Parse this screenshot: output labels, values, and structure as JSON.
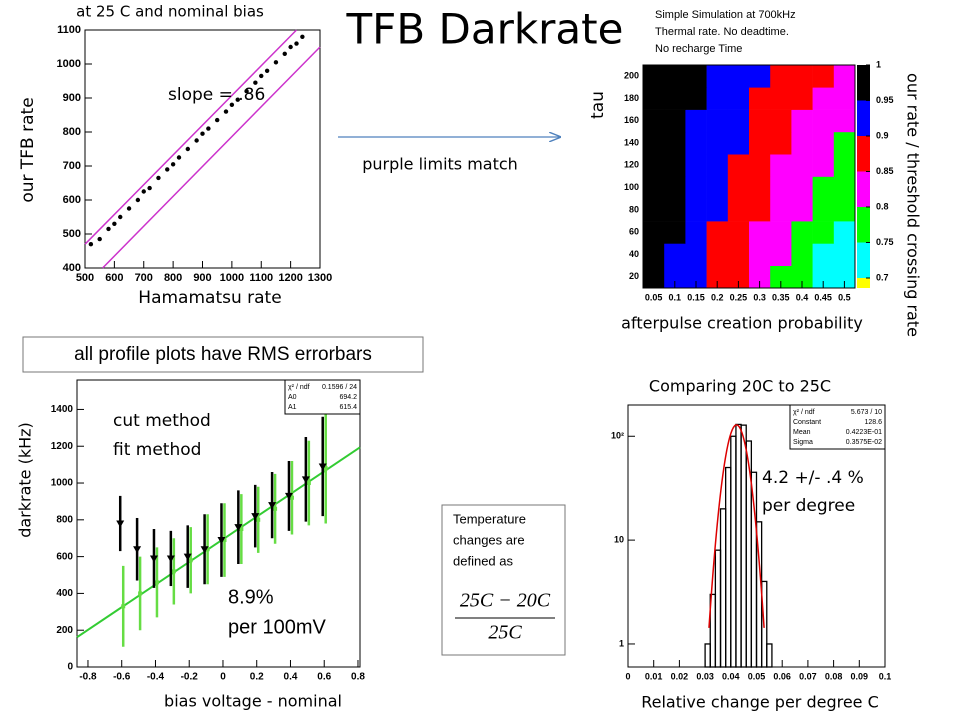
{
  "title": "TFB Darkrate",
  "simulation_note": [
    "Simple Simulation at 700kHz",
    "Thermal rate. No deadtime.",
    "No recharge Time"
  ],
  "arrow_label": "purple limits match",
  "errorbar_note": "all profile plots have RMS errorbars",
  "temperature_note": {
    "lines": [
      "Temperature",
      "changes are",
      "defined as"
    ],
    "numerator": "25C − 20C",
    "denominator": "25C"
  },
  "chart_data": [
    {
      "type": "scatter",
      "title": "at 25 C and nominal bias",
      "x_label": "Hamamatsu rate",
      "y_label": "our TFB rate",
      "annotation": "slope = .86",
      "color": "#000000",
      "x": [
        520,
        550,
        580,
        600,
        620,
        650,
        680,
        700,
        720,
        750,
        780,
        800,
        820,
        850,
        880,
        900,
        920,
        950,
        980,
        1000,
        1020,
        1050,
        1080,
        1100,
        1120,
        1150,
        1180,
        1200,
        1220,
        1240
      ],
      "y": [
        470,
        485,
        515,
        530,
        550,
        575,
        600,
        625,
        635,
        665,
        690,
        705,
        725,
        750,
        775,
        795,
        810,
        835,
        860,
        880,
        895,
        920,
        945,
        965,
        980,
        1005,
        1030,
        1050,
        1060,
        1080
      ],
      "limit_lines": [
        {
          "color": "#cc33cc",
          "x": [
            500,
            1220
          ],
          "y": [
            470,
            1100
          ]
        },
        {
          "color": "#cc33cc",
          "x": [
            560,
            1300
          ],
          "y": [
            400,
            1050
          ]
        }
      ],
      "xlim": [
        500,
        1300
      ],
      "ylim": [
        400,
        1100
      ],
      "xticks": [
        500,
        600,
        700,
        800,
        900,
        1000,
        1100,
        1200,
        1300
      ],
      "yticks": [
        400,
        500,
        600,
        700,
        800,
        900,
        1000,
        1100
      ]
    },
    {
      "type": "heatmap",
      "x_label": "afterpulse creation probability",
      "y_label": "tau",
      "colorbar_label": "our rate / threshold crossing rate",
      "x": [
        0.05,
        0.1,
        0.15,
        0.2,
        0.25,
        0.3,
        0.35,
        0.4,
        0.45,
        0.5
      ],
      "y": [
        20,
        40,
        60,
        80,
        100,
        120,
        140,
        160,
        180,
        200
      ],
      "values": [
        [
          0.97,
          0.94,
          0.91,
          0.88,
          0.85,
          0.82,
          0.79,
          0.76,
          0.73,
          0.7
        ],
        [
          0.97,
          0.94,
          0.91,
          0.89,
          0.86,
          0.83,
          0.8,
          0.77,
          0.74,
          0.72
        ],
        [
          0.97,
          0.95,
          0.92,
          0.89,
          0.87,
          0.84,
          0.81,
          0.78,
          0.76,
          0.73
        ],
        [
          0.97,
          0.95,
          0.92,
          0.9,
          0.87,
          0.85,
          0.82,
          0.8,
          0.77,
          0.75
        ],
        [
          0.98,
          0.95,
          0.93,
          0.9,
          0.88,
          0.86,
          0.83,
          0.81,
          0.78,
          0.76
        ],
        [
          0.98,
          0.96,
          0.93,
          0.91,
          0.89,
          0.87,
          0.84,
          0.82,
          0.8,
          0.78
        ],
        [
          0.98,
          0.96,
          0.94,
          0.92,
          0.9,
          0.87,
          0.85,
          0.83,
          0.81,
          0.79
        ],
        [
          0.98,
          0.96,
          0.94,
          0.92,
          0.9,
          0.88,
          0.86,
          0.84,
          0.82,
          0.81
        ],
        [
          0.98,
          0.96,
          0.95,
          0.93,
          0.91,
          0.89,
          0.87,
          0.86,
          0.84,
          0.82
        ],
        [
          0.98,
          0.97,
          0.95,
          0.93,
          0.92,
          0.9,
          0.88,
          0.86,
          0.85,
          0.83
        ]
      ],
      "levels": [
        0.7,
        0.75,
        0.8,
        0.85,
        0.9,
        0.95,
        1
      ],
      "colors": [
        "#00ffff",
        "#00ff00",
        "#ff00ff",
        "#ff0000",
        "#0000ff",
        "#000000"
      ],
      "under_color": "#ffff00",
      "xlim": [
        0.025,
        0.525
      ],
      "ylim": [
        10,
        210
      ],
      "xticks": [
        0.05,
        0.1,
        0.15,
        0.2,
        0.25,
        0.3,
        0.35,
        0.4,
        0.45,
        0.5
      ],
      "yticks": [
        20,
        40,
        60,
        80,
        100,
        120,
        140,
        160,
        180,
        200
      ]
    },
    {
      "type": "profile",
      "x_label": "bias voltage - nominal",
      "y_label": "darkrate (kHz)",
      "annotation": [
        "8.9%",
        "per 100mV"
      ],
      "x": [
        -0.6,
        -0.5,
        -0.4,
        -0.3,
        -0.2,
        -0.1,
        0,
        0.1,
        0.2,
        0.3,
        0.4,
        0.5,
        0.6
      ],
      "series": [
        {
          "name": "cut method",
          "color": "#000000",
          "values": [
            780,
            640,
            590,
            590,
            600,
            640,
            690,
            760,
            820,
            880,
            930,
            1020,
            1090
          ],
          "errors": [
            150,
            170,
            160,
            150,
            170,
            190,
            200,
            200,
            170,
            180,
            190,
            230,
            270
          ]
        },
        {
          "name": "fit method",
          "color": "#66dd44",
          "values": [
            330,
            400,
            460,
            520,
            580,
            640,
            690,
            750,
            800,
            860,
            920,
            1000,
            1080
          ],
          "errors": [
            220,
            200,
            190,
            180,
            180,
            190,
            200,
            190,
            180,
            190,
            200,
            230,
            300
          ]
        }
      ],
      "fit": {
        "color": "#33cc33",
        "chi2_label": "χ² / ndf",
        "chi2": "0.1596 / 24",
        "params": [
          {
            "name": "A0",
            "value": 694.2
          },
          {
            "name": "A1",
            "value": 615.4
          }
        ]
      },
      "xlim": [
        -0.865,
        0.812
      ],
      "ylim": [
        0,
        1560
      ],
      "xticks": [
        -0.8,
        -0.6,
        -0.4,
        -0.2,
        0,
        0.2,
        0.4,
        0.6,
        0.8
      ],
      "yticks": [
        0,
        200,
        400,
        600,
        800,
        1000,
        1200,
        1400
      ]
    },
    {
      "type": "histogram",
      "title": "Comparing 20C to 25C",
      "x_label": "Relative change per degree C",
      "annotation": [
        "4.2 +/-  .4 %",
        "per degree"
      ],
      "color": "#000000",
      "bins": [
        0.03,
        0.032,
        0.034,
        0.036,
        0.038,
        0.04,
        0.042,
        0.044,
        0.046,
        0.048,
        0.05,
        0.052,
        0.054,
        0.056
      ],
      "values": [
        1,
        3,
        8,
        20,
        50,
        100,
        130,
        128,
        90,
        45,
        15,
        4,
        1
      ],
      "fit": {
        "color": "#dd0000",
        "chi2_label": "χ² / ndf",
        "chi2": "5.673 / 10",
        "params": [
          {
            "name": "Constant",
            "value": 128.6
          },
          {
            "name": "Mean",
            "value": {
              "value": 0.04223,
              "label": "0.4223E-01"
            }
          },
          {
            "name": "Sigma",
            "value": {
              "value": 0.003575,
              "label": "0.3575E-02"
            }
          }
        ]
      },
      "log_y": true,
      "xlim": [
        0,
        0.1
      ],
      "ylim": [
        0.6,
        200
      ],
      "xticks": [
        0,
        0.01,
        0.02,
        0.03,
        0.04,
        0.05,
        0.06,
        0.07,
        0.08,
        0.09,
        0.1
      ],
      "yticks": [
        1,
        10,
        {
          "value": 100,
          "label": "10²"
        }
      ]
    }
  ]
}
